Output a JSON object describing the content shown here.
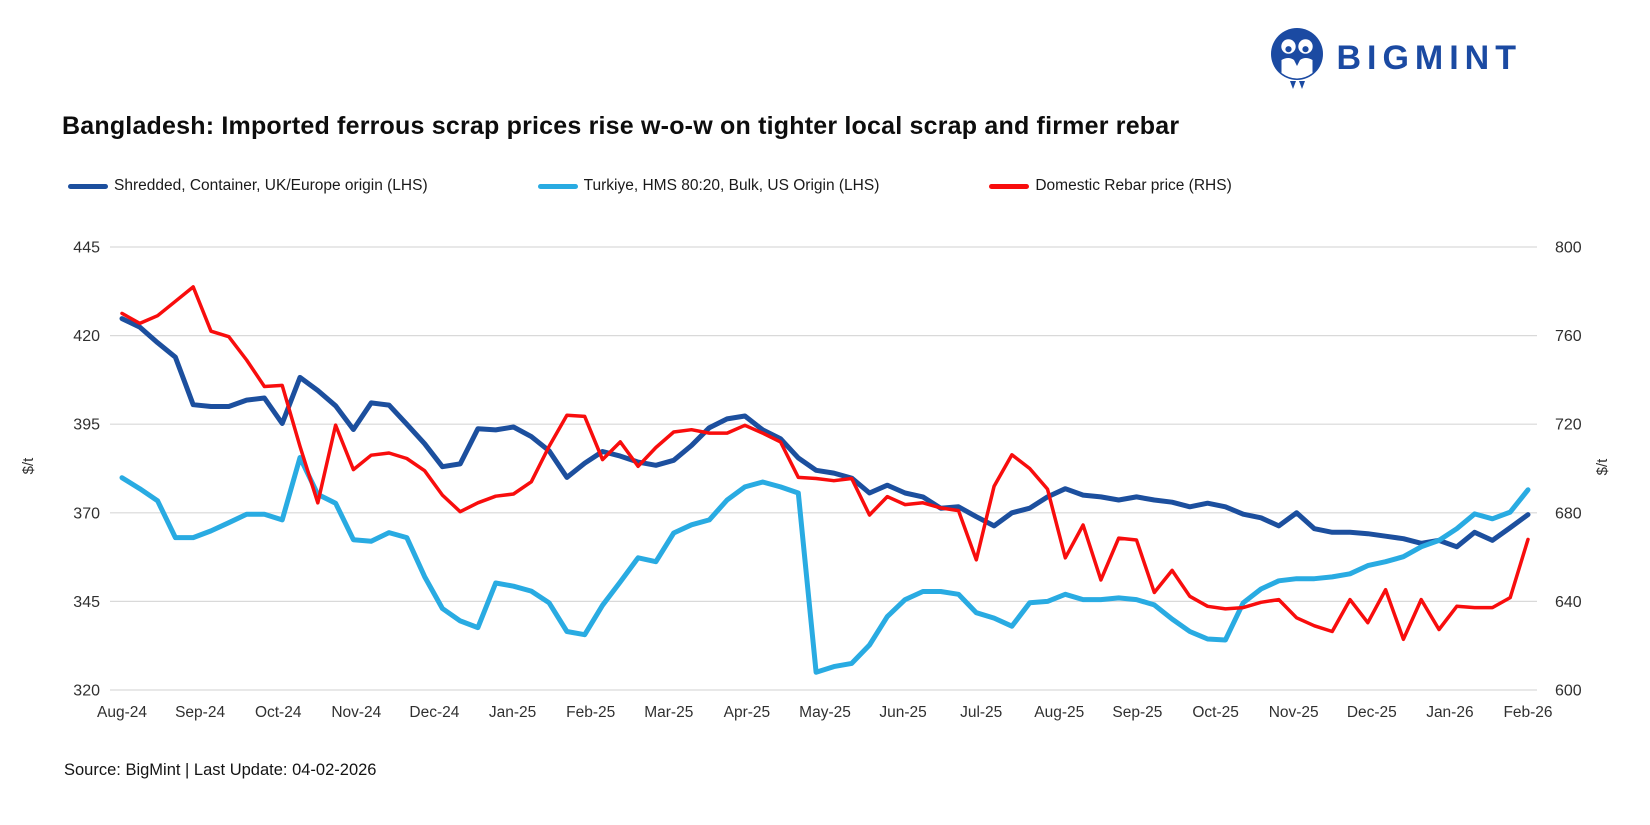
{
  "logo": {
    "text": "BIGMINT",
    "color": "#1b4aa2"
  },
  "title": "Bangladesh: Imported ferrous scrap prices rise w-o-w on tighter local scrap and firmer rebar",
  "source": "Source: BigMint | Last Update: 04-02-2026",
  "chart_data": {
    "type": "line",
    "title": "Bangladesh: Imported ferrous scrap prices rise w-o-w on tighter local scrap and firmer rebar",
    "grid": true,
    "legend_position": "top",
    "x_labels": [
      "Aug-24",
      "Sep-24",
      "Oct-24",
      "Nov-24",
      "Dec-24",
      "Jan-25",
      "Feb-25",
      "Mar-25",
      "Apr-25",
      "May-25",
      "Jun-25",
      "Jul-25",
      "Aug-25",
      "Sep-25",
      "Oct-25",
      "Nov-25",
      "Dec-25",
      "Jan-26",
      "Feb-26"
    ],
    "left_axis": {
      "unit": "$/t",
      "min": 320,
      "max": 445,
      "ticks": [
        445,
        420,
        395,
        370,
        345,
        320
      ]
    },
    "right_axis": {
      "unit": "$/t",
      "min": 600,
      "max": 800,
      "ticks": [
        800,
        760,
        720,
        680,
        640,
        600
      ]
    },
    "series": [
      {
        "name": "Shredded, Container, UK/Europe origin (LHS)",
        "axis": "left",
        "color": "#1c4f9e",
        "width": 5,
        "values": [
          424.8,
          422.4,
          418,
          413.9,
          400.5,
          400,
          400,
          401.8,
          402.4,
          395.2,
          408.2,
          404.5,
          400.2,
          393.5,
          401,
          400.4,
          395,
          389.5,
          383,
          383.8,
          393.7,
          393.4,
          394.2,
          391.5,
          387.5,
          380,
          384,
          387.3,
          386,
          384.3,
          383.4,
          384.8,
          389,
          394,
          396.5,
          397.3,
          393.4,
          390.9,
          385.5,
          382,
          381.2,
          379.8,
          375.6,
          377.8,
          375.6,
          374.5,
          371.3,
          371.7,
          368.9,
          366.3,
          370,
          371.3,
          374.5,
          376.8,
          375,
          374.5,
          373.6,
          374.5,
          373.6,
          373,
          371.7,
          372.7,
          371.7,
          369.6,
          368.6,
          366.3,
          370,
          365.5,
          364.5,
          364.5,
          364.1,
          363.4,
          362.7,
          361.4,
          362.2,
          360.4,
          364.5,
          362.2,
          365.8,
          369.5
        ]
      },
      {
        "name": "Turkiye, HMS 80:20, Bulk, US Origin (LHS)",
        "axis": "left",
        "color": "#29abe2",
        "width": 5,
        "values": [
          379.9,
          376.8,
          373.4,
          363,
          363,
          364.9,
          367.2,
          369.6,
          369.6,
          368,
          385.6,
          375.2,
          372.7,
          362.4,
          362,
          364.4,
          363,
          352,
          343,
          339.5,
          337.6,
          350.2,
          349.3,
          347.9,
          344.6,
          336.5,
          335.6,
          343.9,
          350.5,
          357.3,
          356.2,
          364.3,
          366.6,
          368,
          373.6,
          377.3,
          378.7,
          377.3,
          375.6,
          325,
          326.6,
          327.5,
          332.7,
          340.7,
          345.5,
          347.8,
          347.8,
          347,
          341.8,
          340.3,
          338,
          344.6,
          345,
          347,
          345.5,
          345.5,
          346,
          345.5,
          344,
          340,
          336.5,
          334.4,
          334.1,
          344.6,
          348.5,
          350.8,
          351.4,
          351.4,
          351.9,
          352.8,
          355.1,
          356.2,
          357.6,
          360.4,
          362.2,
          365.5,
          369.7,
          368.3,
          370.2,
          376.5
        ]
      },
      {
        "name": "Domestic Rebar price (RHS)",
        "axis": "right",
        "color": "#f80d0d",
        "width": 3.5,
        "values": [
          770,
          765.5,
          769,
          775.5,
          782,
          762,
          759.5,
          749,
          737,
          737.5,
          710,
          684.5,
          719.6,
          699.5,
          706,
          707,
          704.5,
          699,
          688,
          680.5,
          684.5,
          687.5,
          688.5,
          694,
          710,
          724,
          723.5,
          704,
          712,
          701,
          709.5,
          716.5,
          717.5,
          716,
          716,
          719.5,
          716,
          712,
          696,
          695.5,
          694.5,
          695.5,
          679,
          687.3,
          683.7,
          684.5,
          682.2,
          681,
          658.8,
          692,
          706.2,
          700,
          690.7,
          659.7,
          674.5,
          649.7,
          668.6,
          667.7,
          644,
          654,
          642.3,
          637.8,
          636.6,
          637.2,
          639.6,
          640.8,
          632.6,
          629,
          626.4,
          640.8,
          630.4,
          645.3,
          622.9,
          640.8,
          627.3,
          637.8,
          637.2,
          637.2,
          641.7,
          668
        ]
      }
    ]
  }
}
